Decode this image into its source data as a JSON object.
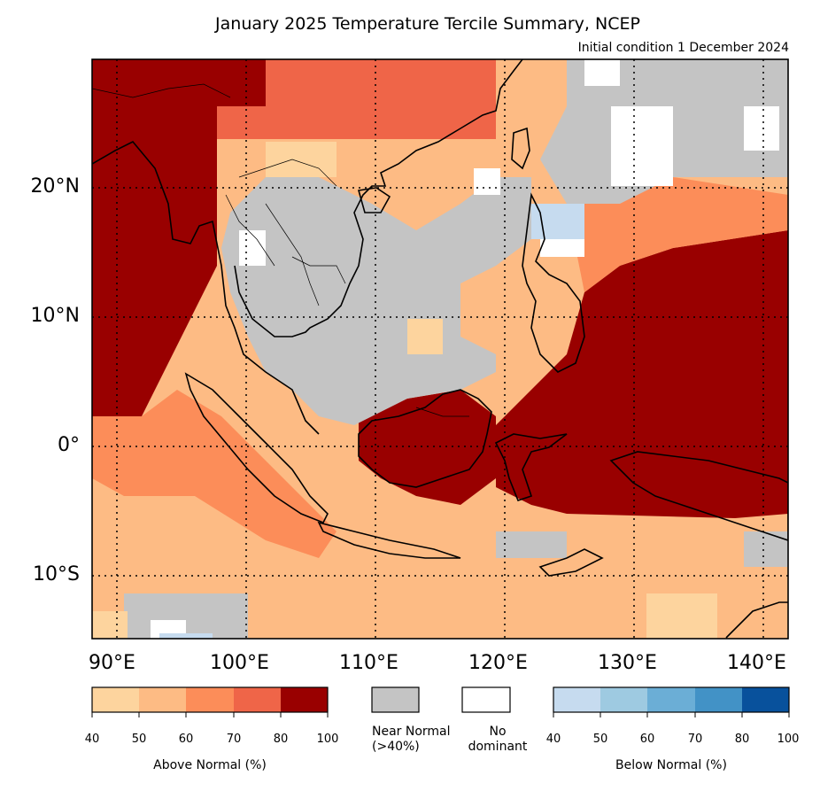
{
  "title": "January 2025 Temperature Tercile Summary, NCEP",
  "subtitle": "Initial condition 1 December 2024",
  "map": {
    "lat_ticks": [
      "20°N",
      "10°N",
      "0°",
      "10°S"
    ],
    "lon_ticks": [
      "90°E",
      "100°E",
      "110°E",
      "120°E",
      "130°E",
      "140°E"
    ]
  },
  "legend": {
    "above": {
      "label": "Above Normal (%)",
      "ticks": [
        "40",
        "50",
        "60",
        "70",
        "80",
        "100"
      ],
      "colors": [
        "#fdd49e",
        "#fdbb84",
        "#fc8d59",
        "#ef6548",
        "#990000"
      ]
    },
    "near_normal": {
      "label_line1": "Near Normal",
      "label_line2": "(>40%)",
      "color": "#c4c4c4"
    },
    "no_dominant": {
      "label_line1": "No",
      "label_line2": "dominant",
      "color": "#ffffff"
    },
    "below": {
      "label": "Below Normal (%)",
      "ticks": [
        "40",
        "50",
        "60",
        "70",
        "80",
        "100"
      ],
      "colors": [
        "#c6dbef",
        "#9ecae1",
        "#6baed6",
        "#4292c6",
        "#08519c"
      ]
    }
  }
}
